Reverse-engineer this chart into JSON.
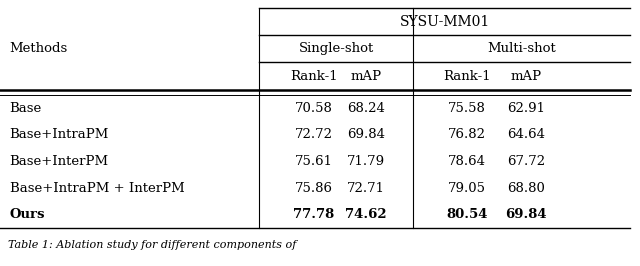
{
  "title": "SYSU-MM01",
  "col_header_level2": [
    "Single-shot",
    "Multi-shot"
  ],
  "col_header_level3": [
    "Rank-1",
    "mAP",
    "Rank-1",
    "mAP"
  ],
  "row_header": "Methods",
  "rows": [
    {
      "method": "Base",
      "bold": false,
      "values": [
        "70.58",
        "68.24",
        "75.58",
        "62.91"
      ]
    },
    {
      "method": "Base+IntraPM",
      "bold": false,
      "values": [
        "72.72",
        "69.84",
        "76.82",
        "64.64"
      ]
    },
    {
      "method": "Base+InterPM",
      "bold": false,
      "values": [
        "75.61",
        "71.79",
        "78.64",
        "67.72"
      ]
    },
    {
      "method": "Base+IntraPM + InterPM",
      "bold": false,
      "values": [
        "75.86",
        "72.71",
        "79.05",
        "68.80"
      ]
    },
    {
      "method": "Ours",
      "bold": true,
      "values": [
        "77.78",
        "74.62",
        "80.54",
        "69.84"
      ]
    }
  ],
  "bg_color": "#ffffff",
  "text_color": "#000000",
  "line_color": "#000000",
  "font_size": 9.5,
  "caption": "Table 1: Ablation study for different components of"
}
